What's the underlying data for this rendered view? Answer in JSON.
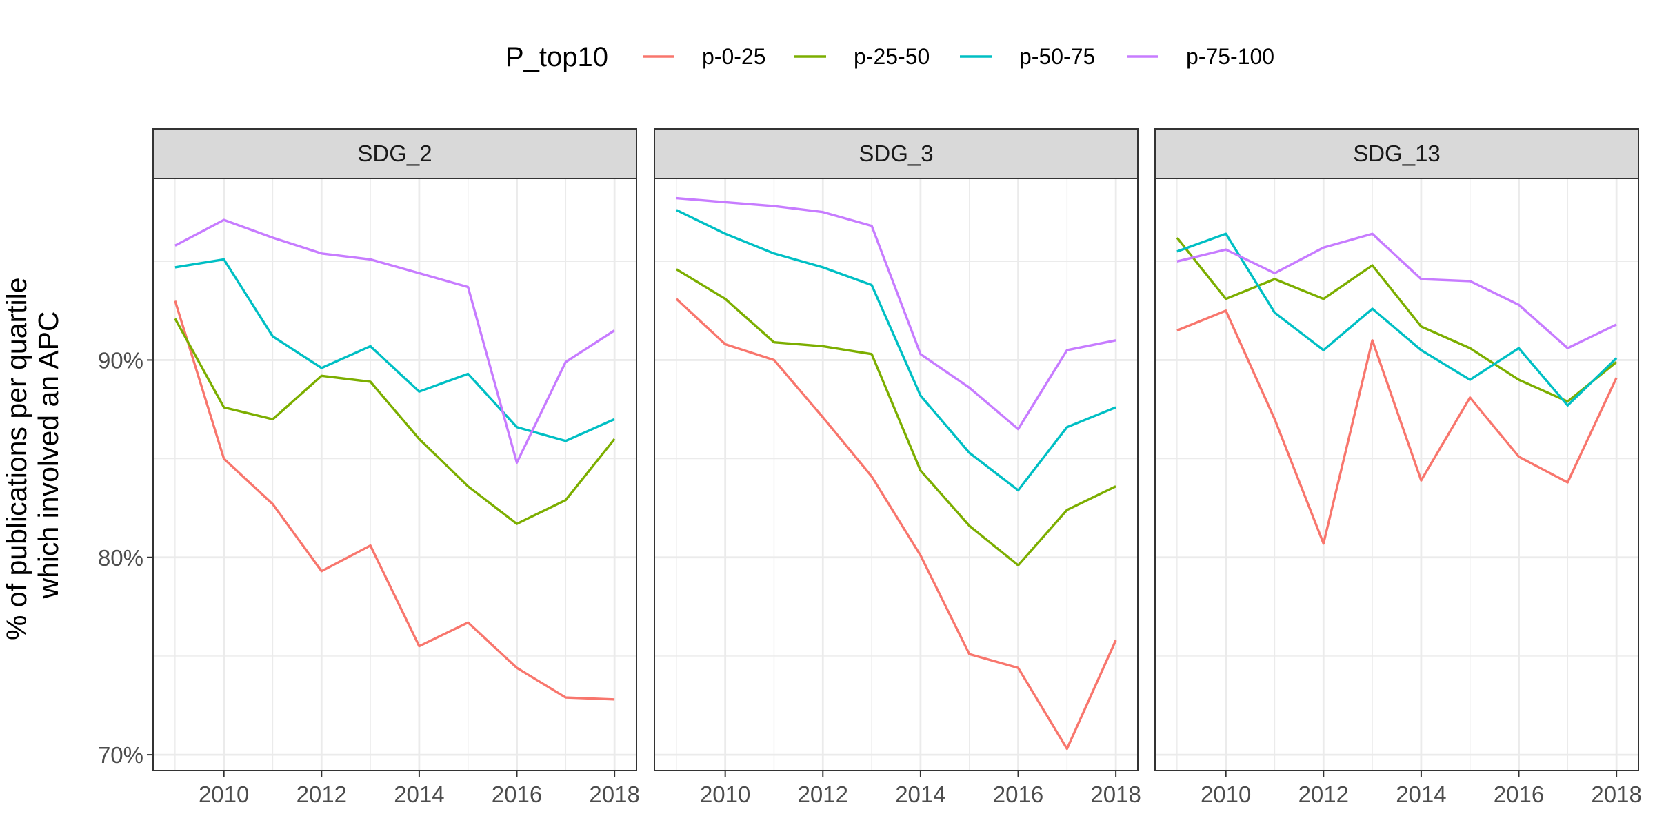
{
  "legend": {
    "title": "P_top10",
    "entries": [
      {
        "label": "p-0-25",
        "color": "#F8766D"
      },
      {
        "label": "p-25-50",
        "color": "#7CAE00"
      },
      {
        "label": "p-50-75",
        "color": "#00BFC4"
      },
      {
        "label": "p-75-100",
        "color": "#C77CFF"
      }
    ]
  },
  "y_axis": {
    "title_line1": "% of publications per quartile",
    "title_line2": "which involved an APC"
  },
  "chart_data": [
    {
      "type": "line",
      "panel": "SDG_2",
      "x": [
        2009,
        2010,
        2011,
        2012,
        2013,
        2014,
        2015,
        2016,
        2017,
        2018
      ],
      "xticks": [
        "2010",
        "2012",
        "2014",
        "2016",
        "2018"
      ],
      "yticks": [
        "70%",
        "80%",
        "90%"
      ],
      "xlim": [
        2008.55,
        2018.45
      ],
      "ylim": [
        69.2,
        99.2
      ],
      "grid": true,
      "legend_position": "top",
      "series": [
        {
          "name": "p-0-25",
          "values": [
            93.0,
            85.0,
            82.7,
            79.3,
            80.6,
            75.5,
            76.7,
            74.4,
            72.9,
            72.8
          ]
        },
        {
          "name": "p-25-50",
          "values": [
            92.1,
            87.6,
            87.0,
            89.2,
            88.9,
            86.0,
            83.6,
            81.7,
            82.9,
            86.0
          ]
        },
        {
          "name": "p-50-75",
          "values": [
            94.7,
            95.1,
            91.2,
            89.6,
            90.7,
            88.4,
            89.3,
            86.6,
            85.9,
            87.0
          ]
        },
        {
          "name": "p-75-100",
          "values": [
            95.8,
            97.1,
            96.2,
            95.4,
            95.1,
            94.4,
            93.7,
            84.8,
            89.9,
            91.5
          ]
        }
      ]
    },
    {
      "type": "line",
      "panel": "SDG_3",
      "x": [
        2009,
        2010,
        2011,
        2012,
        2013,
        2014,
        2015,
        2016,
        2017,
        2018
      ],
      "xticks": [
        "2010",
        "2012",
        "2014",
        "2016",
        "2018"
      ],
      "yticks": [
        "70%",
        "80%",
        "90%"
      ],
      "xlim": [
        2008.55,
        2018.45
      ],
      "ylim": [
        69.2,
        99.2
      ],
      "grid": true,
      "legend_position": "top",
      "series": [
        {
          "name": "p-0-25",
          "values": [
            93.1,
            90.8,
            90.0,
            87.1,
            84.1,
            80.1,
            75.1,
            74.4,
            70.3,
            75.8
          ]
        },
        {
          "name": "p-25-50",
          "values": [
            94.6,
            93.1,
            90.9,
            90.7,
            90.3,
            84.4,
            81.6,
            79.6,
            82.4,
            83.6
          ]
        },
        {
          "name": "p-50-75",
          "values": [
            97.6,
            96.4,
            95.4,
            94.7,
            93.8,
            88.2,
            85.3,
            83.4,
            86.6,
            87.6
          ]
        },
        {
          "name": "p-75-100",
          "values": [
            98.2,
            98.0,
            97.8,
            97.5,
            96.8,
            90.3,
            88.6,
            86.5,
            90.5,
            91.0
          ]
        }
      ]
    },
    {
      "type": "line",
      "panel": "SDG_13",
      "x": [
        2009,
        2010,
        2011,
        2012,
        2013,
        2014,
        2015,
        2016,
        2017,
        2018
      ],
      "xticks": [
        "2010",
        "2012",
        "2014",
        "2016",
        "2018"
      ],
      "yticks": [
        "70%",
        "80%",
        "90%"
      ],
      "xlim": [
        2008.55,
        2018.45
      ],
      "ylim": [
        69.2,
        99.2
      ],
      "grid": true,
      "legend_position": "top",
      "series": [
        {
          "name": "p-0-25",
          "values": [
            91.5,
            92.5,
            87.0,
            80.7,
            91.0,
            83.9,
            88.1,
            85.1,
            83.8,
            89.1
          ]
        },
        {
          "name": "p-25-50",
          "values": [
            96.2,
            93.1,
            94.1,
            93.1,
            94.8,
            91.7,
            90.6,
            89.0,
            87.9,
            89.9
          ]
        },
        {
          "name": "p-50-75",
          "values": [
            95.5,
            96.4,
            92.4,
            90.5,
            92.6,
            90.5,
            89.0,
            90.6,
            87.7,
            90.1
          ]
        },
        {
          "name": "p-75-100",
          "values": [
            95.0,
            95.6,
            94.4,
            95.7,
            96.4,
            94.1,
            94.0,
            92.8,
            90.6,
            91.8
          ]
        }
      ]
    }
  ]
}
